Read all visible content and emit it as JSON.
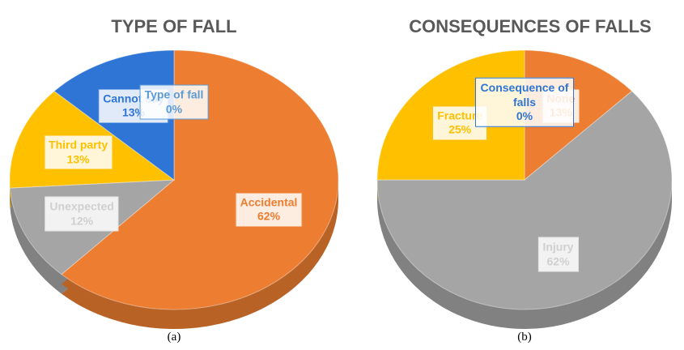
{
  "chart_data": [
    {
      "type": "pie",
      "title": "TYPE OF FALL",
      "caption": "(a)",
      "categories": [
        "Accidental",
        "Unexpected",
        "Third party",
        "Cannot say",
        "Type of fall"
      ],
      "values": [
        62,
        12,
        13,
        13,
        0
      ],
      "value_labels": [
        "62%",
        "12%",
        "13%",
        "13%",
        "0%"
      ],
      "colors": [
        "#ED7D31",
        "#A5A5A5",
        "#FFC000",
        "#2E75D6",
        "#5B9BD5"
      ]
    },
    {
      "type": "pie",
      "title": "CONSEQUENCES OF FALLS",
      "caption": "(b)",
      "categories": [
        "None",
        "Injury",
        "Fracture",
        "Consequence of falls"
      ],
      "values": [
        13,
        62,
        25,
        0
      ],
      "value_labels": [
        "13%",
        "62%",
        "25%",
        "0%"
      ],
      "colors": [
        "#ED7D31",
        "#A5A5A5",
        "#FFC000",
        "#2E75D6"
      ]
    }
  ]
}
